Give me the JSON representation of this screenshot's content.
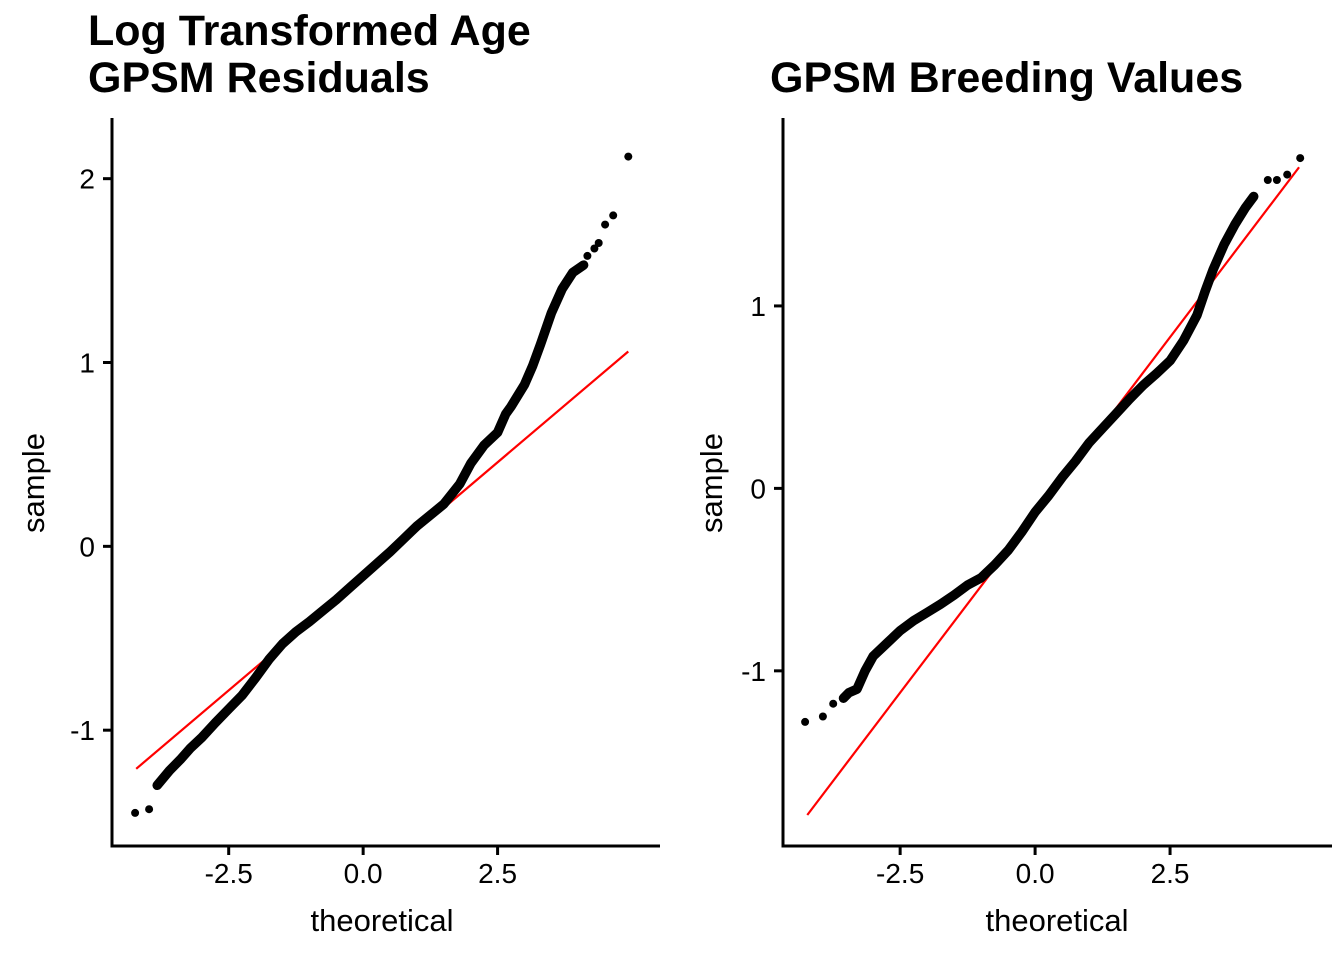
{
  "page": {
    "background": "#FFFFFF",
    "text_color": "#000000"
  },
  "chart_data": [
    {
      "type": "scatter",
      "variant": "qq-plot",
      "title": "Log Transformed Age\nGPSM Residuals",
      "xlabel": "theoretical",
      "ylabel": "sample",
      "grid": false,
      "legend": "none",
      "point_color": "#000000",
      "ref_line_color": "#FF0000",
      "x_ticks": {
        "values": [
          -2.5,
          0.0,
          2.5
        ],
        "labels": [
          "-2.5",
          "0.0",
          "2.5"
        ]
      },
      "y_ticks": {
        "values": [
          2,
          1,
          0,
          -1
        ],
        "labels": [
          "2",
          "1",
          "0",
          "-1"
        ]
      },
      "x_range": [
        -4.67,
        5.52
      ],
      "y_range": [
        -1.63,
        2.33
      ],
      "ref_line": {
        "x1": -4.22,
        "y1": -1.21,
        "x2": 4.93,
        "y2": 1.06,
        "intercept": -0.16,
        "slope": 0.248
      },
      "qq_band": [
        [
          -3.83,
          -1.3
        ],
        [
          -3.6,
          -1.22
        ],
        [
          -3.4,
          -1.16
        ],
        [
          -3.22,
          -1.1
        ],
        [
          -3.0,
          -1.04
        ],
        [
          -2.75,
          -0.96
        ],
        [
          -2.5,
          -0.885
        ],
        [
          -2.25,
          -0.81
        ],
        [
          -2.0,
          -0.715
        ],
        [
          -1.75,
          -0.615
        ],
        [
          -1.5,
          -0.53
        ],
        [
          -1.25,
          -0.465
        ],
        [
          -1.0,
          -0.41
        ],
        [
          -0.75,
          -0.35
        ],
        [
          -0.5,
          -0.29
        ],
        [
          -0.25,
          -0.225
        ],
        [
          0.0,
          -0.16
        ],
        [
          0.25,
          -0.095
        ],
        [
          0.5,
          -0.03
        ],
        [
          0.75,
          0.04
        ],
        [
          1.0,
          0.11
        ],
        [
          1.25,
          0.17
        ],
        [
          1.5,
          0.23
        ],
        [
          1.8,
          0.34
        ],
        [
          2.0,
          0.45
        ],
        [
          2.25,
          0.55
        ],
        [
          2.5,
          0.62
        ],
        [
          2.65,
          0.72
        ],
        [
          2.75,
          0.76
        ],
        [
          3.0,
          0.88
        ],
        [
          3.15,
          0.98
        ],
        [
          3.3,
          1.1
        ],
        [
          3.5,
          1.27
        ],
        [
          3.7,
          1.4
        ],
        [
          3.9,
          1.49
        ],
        [
          4.1,
          1.53
        ]
      ],
      "tail_points": [
        [
          -4.24,
          -1.45
        ],
        [
          -3.98,
          -1.43
        ],
        [
          4.17,
          1.58
        ],
        [
          4.3,
          1.62
        ],
        [
          4.38,
          1.65
        ],
        [
          4.5,
          1.75
        ],
        [
          4.65,
          1.8
        ],
        [
          4.93,
          2.12
        ]
      ]
    },
    {
      "type": "scatter",
      "variant": "qq-plot",
      "title": "GPSM Breeding Values",
      "xlabel": "theoretical",
      "ylabel": "sample",
      "grid": false,
      "legend": "none",
      "point_color": "#000000",
      "ref_line_color": "#FF0000",
      "x_ticks": {
        "values": [
          -2.5,
          0.0,
          2.5
        ],
        "labels": [
          "-2.5",
          "0.0",
          "2.5"
        ]
      },
      "y_ticks": {
        "values": [
          1,
          0,
          -1
        ],
        "labels": [
          "1",
          "0",
          "-1"
        ]
      },
      "x_range": [
        -4.67,
        5.5
      ],
      "y_range": [
        -1.96,
        2.03
      ],
      "ref_line": {
        "x1": -4.22,
        "y1": -1.79,
        "x2": 4.89,
        "y2": 1.76,
        "intercept": -0.145,
        "slope": 0.39
      },
      "qq_band": [
        [
          -3.55,
          -1.15
        ],
        [
          -3.45,
          -1.12
        ],
        [
          -3.3,
          -1.1
        ],
        [
          -3.15,
          -1.0
        ],
        [
          -3.0,
          -0.92
        ],
        [
          -2.75,
          -0.85
        ],
        [
          -2.5,
          -0.78
        ],
        [
          -2.25,
          -0.725
        ],
        [
          -2.0,
          -0.68
        ],
        [
          -1.75,
          -0.635
        ],
        [
          -1.5,
          -0.585
        ],
        [
          -1.25,
          -0.53
        ],
        [
          -1.0,
          -0.49
        ],
        [
          -0.75,
          -0.42
        ],
        [
          -0.5,
          -0.34
        ],
        [
          -0.25,
          -0.24
        ],
        [
          0.0,
          -0.13
        ],
        [
          0.25,
          -0.04
        ],
        [
          0.5,
          0.06
        ],
        [
          0.75,
          0.15
        ],
        [
          1.0,
          0.25
        ],
        [
          1.25,
          0.33
        ],
        [
          1.5,
          0.41
        ],
        [
          1.75,
          0.49
        ],
        [
          2.0,
          0.565
        ],
        [
          2.25,
          0.63
        ],
        [
          2.5,
          0.7
        ],
        [
          2.75,
          0.81
        ],
        [
          3.0,
          0.95
        ],
        [
          3.15,
          1.08
        ],
        [
          3.3,
          1.2
        ],
        [
          3.5,
          1.335
        ],
        [
          3.7,
          1.445
        ],
        [
          3.9,
          1.54
        ],
        [
          4.05,
          1.6
        ]
      ],
      "tail_points": [
        [
          -4.26,
          -1.28
        ],
        [
          -3.93,
          -1.25
        ],
        [
          -3.74,
          -1.18
        ],
        [
          4.31,
          1.69
        ],
        [
          4.48,
          1.69
        ],
        [
          4.67,
          1.72
        ],
        [
          4.91,
          1.81
        ]
      ]
    }
  ]
}
